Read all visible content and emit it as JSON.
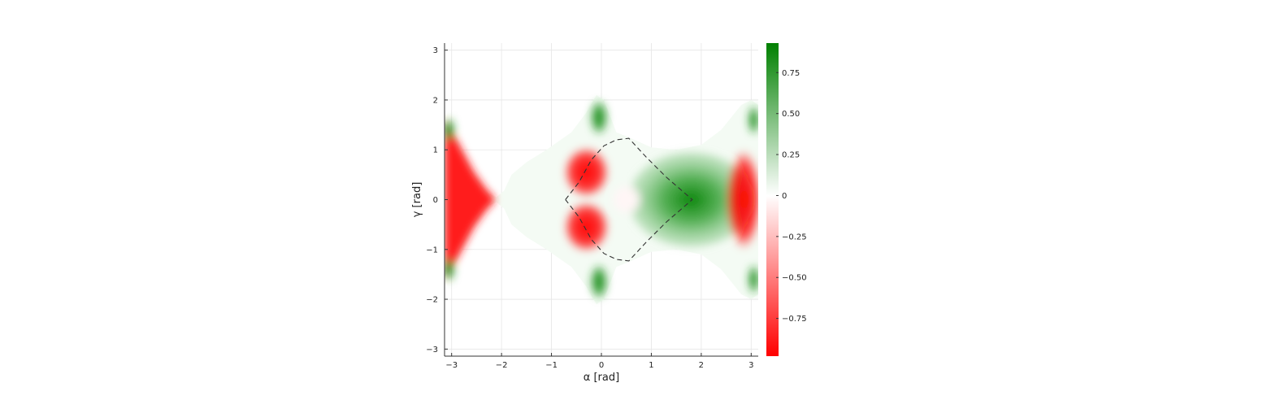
{
  "chart_data": {
    "type": "heatmap",
    "title": "",
    "xlabel": "α [rad]",
    "ylabel": "γ [rad]",
    "xlim": [
      -3.1416,
      3.1416
    ],
    "ylim": [
      -3.1416,
      3.1416
    ],
    "x_ticks": [
      -3,
      -2,
      -1,
      0,
      1,
      2,
      3
    ],
    "x_tick_labels": [
      "−3",
      "−2",
      "−1",
      "0",
      "1",
      "2",
      "3"
    ],
    "y_ticks": [
      -3,
      -2,
      -1,
      0,
      1,
      2,
      3
    ],
    "y_tick_labels": [
      "−3",
      "−2",
      "−1",
      "0",
      "1",
      "2",
      "3"
    ],
    "grid": true,
    "colorbar": {
      "range": [
        -0.98,
        0.93
      ],
      "ticks": [
        0.75,
        0.5,
        0.25,
        0,
        -0.25,
        -0.5,
        -0.75
      ],
      "tick_labels": [
        "0.75",
        "0.50",
        "0.25",
        "0",
        "−0.25",
        "−0.50",
        "−0.75"
      ],
      "colors": {
        "low": "#ff0000",
        "mid": "#ffffff",
        "high": "#008000"
      }
    },
    "regions": [
      {
        "name": "left-red-lobe",
        "sign": "negative",
        "outline": [
          [
            -3.14,
            1.6
          ],
          [
            -2.9,
            1.2
          ],
          [
            -2.55,
            0.55
          ],
          [
            -2.3,
            0.2
          ],
          [
            -2.15,
            0.05
          ],
          [
            -2.15,
            -0.05
          ],
          [
            -2.3,
            -0.2
          ],
          [
            -2.55,
            -0.55
          ],
          [
            -2.9,
            -1.2
          ],
          [
            -3.14,
            -1.6
          ]
        ]
      },
      {
        "name": "left-green-tip-upper",
        "sign": "positive",
        "center": [
          -3.05,
          1.4
        ]
      },
      {
        "name": "left-green-tip-lower",
        "sign": "positive",
        "center": [
          -3.05,
          -1.4
        ]
      },
      {
        "name": "center-red-upper",
        "sign": "negative",
        "center": [
          -0.3,
          0.55
        ]
      },
      {
        "name": "center-red-lower",
        "sign": "negative",
        "center": [
          -0.3,
          -0.55
        ]
      },
      {
        "name": "upper-horn-green",
        "sign": "positive",
        "center": [
          -0.05,
          1.65
        ]
      },
      {
        "name": "lower-horn-green",
        "sign": "positive",
        "center": [
          -0.05,
          -1.65
        ]
      },
      {
        "name": "central-green-body",
        "sign": "positive",
        "center": [
          1.8,
          0.0
        ]
      },
      {
        "name": "right-red-lobe",
        "sign": "negative",
        "center": [
          2.85,
          0.0
        ]
      },
      {
        "name": "right-green-edge-upper",
        "sign": "positive",
        "center": [
          3.05,
          1.6
        ]
      },
      {
        "name": "right-green-edge-lower",
        "sign": "positive",
        "center": [
          3.05,
          -1.6
        ]
      }
    ],
    "boundary_curve": {
      "style": "dashed",
      "color": "#333333",
      "points": [
        [
          -0.72,
          0.0
        ],
        [
          -0.45,
          0.35
        ],
        [
          -0.2,
          0.8
        ],
        [
          0.05,
          1.08
        ],
        [
          0.3,
          1.2
        ],
        [
          0.55,
          1.23
        ],
        [
          0.9,
          0.85
        ],
        [
          1.3,
          0.45
        ],
        [
          1.82,
          0.0
        ],
        [
          1.3,
          -0.45
        ],
        [
          0.9,
          -0.85
        ],
        [
          0.55,
          -1.23
        ],
        [
          0.3,
          -1.2
        ],
        [
          0.05,
          -1.08
        ],
        [
          -0.2,
          -0.8
        ],
        [
          -0.45,
          -0.35
        ],
        [
          -0.72,
          0.0
        ]
      ]
    }
  }
}
